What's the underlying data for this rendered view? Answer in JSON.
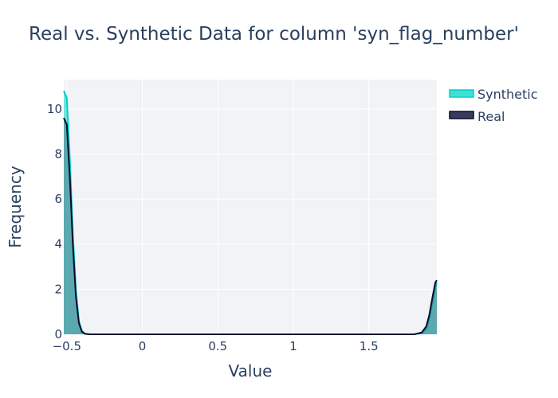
{
  "chart_data": {
    "type": "area",
    "title": "Real vs. Synthetic Data for column 'syn_flag_number'",
    "xlabel": "Value",
    "ylabel": "Frequency",
    "xlim": [
      -0.52,
      1.95
    ],
    "ylim": [
      0,
      11.3
    ],
    "x_ticks": [
      -0.5,
      0,
      0.5,
      1,
      1.5
    ],
    "x_tick_labels": [
      "−0.5",
      "0",
      "0.5",
      "1",
      "1.5"
    ],
    "y_ticks": [
      0,
      2,
      4,
      6,
      8,
      10
    ],
    "y_tick_labels": [
      "0",
      "2",
      "4",
      "6",
      "8",
      "10"
    ],
    "grid": true,
    "legend_position": "top-right",
    "series": [
      {
        "name": "Synthetic",
        "color": "#40e0d0",
        "line_color": "#00ced1",
        "x": [
          -0.52,
          -0.5,
          -0.48,
          -0.46,
          -0.44,
          -0.42,
          -0.4,
          -0.38,
          -0.35,
          1.8,
          1.85,
          1.88,
          1.9,
          1.92,
          1.94,
          1.95
        ],
        "y": [
          10.8,
          10.5,
          7.8,
          4.5,
          2.0,
          0.6,
          0.15,
          0.03,
          0,
          0,
          0.05,
          0.25,
          0.7,
          1.4,
          2.1,
          2.3
        ]
      },
      {
        "name": "Real",
        "color": "#3a3a5c",
        "line_color": "#0d0d2b",
        "x": [
          -0.52,
          -0.5,
          -0.48,
          -0.46,
          -0.44,
          -0.42,
          -0.4,
          -0.38,
          -0.35,
          1.8,
          1.85,
          1.88,
          1.9,
          1.92,
          1.94,
          1.95
        ],
        "y": [
          9.6,
          9.3,
          7.0,
          4.0,
          1.7,
          0.5,
          0.12,
          0.02,
          0,
          0,
          0.08,
          0.35,
          0.85,
          1.6,
          2.3,
          2.4
        ]
      }
    ]
  }
}
